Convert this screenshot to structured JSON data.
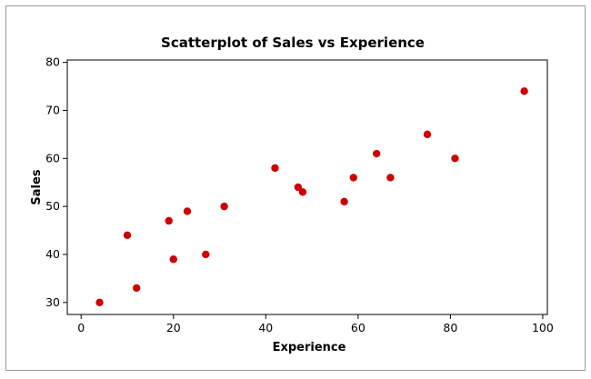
{
  "chart_data": {
    "type": "scatter",
    "title": "Scatterplot of Sales vs Experience",
    "xlabel": "Experience",
    "ylabel": "Sales",
    "xlim": [
      -3,
      101
    ],
    "ylim": [
      27.5,
      80.5
    ],
    "x_ticks": [
      0,
      20,
      40,
      60,
      80,
      100
    ],
    "y_ticks": [
      30,
      40,
      50,
      60,
      70,
      80
    ],
    "grid": false,
    "marker_color": "#cc0000",
    "points": [
      {
        "x": 4,
        "y": 30
      },
      {
        "x": 10,
        "y": 44
      },
      {
        "x": 12,
        "y": 33
      },
      {
        "x": 19,
        "y": 47
      },
      {
        "x": 20,
        "y": 39
      },
      {
        "x": 23,
        "y": 49
      },
      {
        "x": 27,
        "y": 40
      },
      {
        "x": 31,
        "y": 50
      },
      {
        "x": 42,
        "y": 58
      },
      {
        "x": 47,
        "y": 54
      },
      {
        "x": 48,
        "y": 53
      },
      {
        "x": 57,
        "y": 51
      },
      {
        "x": 59,
        "y": 56
      },
      {
        "x": 64,
        "y": 61
      },
      {
        "x": 67,
        "y": 56
      },
      {
        "x": 75,
        "y": 65
      },
      {
        "x": 81,
        "y": 60
      },
      {
        "x": 96,
        "y": 74
      }
    ]
  }
}
